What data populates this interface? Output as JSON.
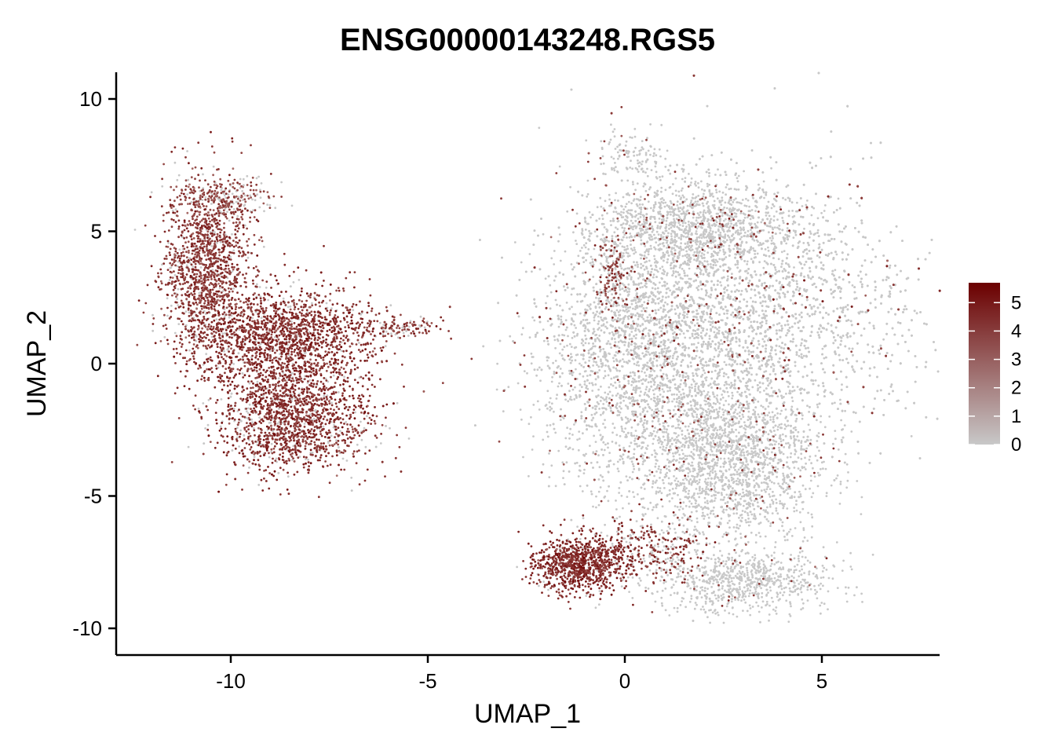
{
  "chart_data": {
    "type": "scatter",
    "title": "ENSG00000143248.RGS5",
    "xlabel": "UMAP_1",
    "ylabel": "UMAP_2",
    "xlim": [
      -13,
      8
    ],
    "ylim": [
      -11.2,
      11
    ],
    "x_ticks": [
      -10,
      -5,
      0,
      5
    ],
    "x_tick_labels": [
      "-10",
      "-5",
      "0",
      "5"
    ],
    "y_ticks": [
      -10,
      -5,
      0,
      5,
      10
    ],
    "y_tick_labels": [
      "-10",
      "-5",
      "0",
      "5",
      "10"
    ],
    "grid": false,
    "legend": {
      "placement": "right",
      "type": "colorbar",
      "range": [
        0,
        5.7
      ],
      "ticks": [
        0,
        1,
        2,
        3,
        4,
        5
      ],
      "tick_labels": [
        "0",
        "1",
        "2",
        "3",
        "4",
        "5"
      ],
      "color_low": "#c8c8c8",
      "color_high": "#6b0000"
    },
    "clusters": [
      {
        "name_hint": "left-cluster-upper-arm",
        "cx": -10.6,
        "cy": 3.6,
        "sx": 0.55,
        "sy": 1.6,
        "n": 1400,
        "expr_mean": 3.4,
        "expr_frac": 0.9
      },
      {
        "name_hint": "left-cluster-middle",
        "cx": -8.6,
        "cy": 1.0,
        "sx": 1.1,
        "sy": 0.9,
        "n": 1800,
        "expr_mean": 3.8,
        "expr_frac": 0.92
      },
      {
        "name_hint": "left-cluster-lower",
        "cx": -8.4,
        "cy": -2.0,
        "sx": 1.0,
        "sy": 1.0,
        "n": 1800,
        "expr_mean": 3.7,
        "expr_frac": 0.85
      },
      {
        "name_hint": "left-cluster-tail",
        "cx": -5.8,
        "cy": 1.35,
        "sx": 0.6,
        "sy": 0.18,
        "n": 120,
        "expr_mean": 3.3,
        "expr_frac": 0.8
      },
      {
        "name_hint": "left-cluster-top",
        "cx": -10.2,
        "cy": 6.3,
        "sx": 0.6,
        "sy": 0.4,
        "n": 250,
        "expr_mean": 2.6,
        "expr_frac": 0.6
      },
      {
        "name_hint": "right-cluster-main",
        "cx": 3.0,
        "cy": 1.8,
        "sx": 2.2,
        "sy": 2.4,
        "n": 7000,
        "expr_mean": 3.0,
        "expr_frac": 0.06
      },
      {
        "name_hint": "right-cluster-west",
        "cx": 0.4,
        "cy": 0.0,
        "sx": 1.3,
        "sy": 2.5,
        "n": 2500,
        "expr_mean": 3.0,
        "expr_frac": 0.07
      },
      {
        "name_hint": "right-cluster-upper",
        "cx": 1.8,
        "cy": 5.2,
        "sx": 1.3,
        "sy": 0.8,
        "n": 1200,
        "expr_mean": 3.0,
        "expr_frac": 0.05
      },
      {
        "name_hint": "right-cluster-lower",
        "cx": 2.8,
        "cy": -3.8,
        "sx": 1.1,
        "sy": 1.5,
        "n": 1800,
        "expr_mean": 3.0,
        "expr_frac": 0.04
      },
      {
        "name_hint": "right-cluster-bottom",
        "cx": 3.0,
        "cy": -8.2,
        "sx": 1.1,
        "sy": 0.6,
        "n": 800,
        "expr_mean": 3.0,
        "expr_frac": 0.02
      },
      {
        "name_hint": "right-cluster-spike",
        "cx": 0.2,
        "cy": 7.8,
        "sx": 0.5,
        "sy": 0.5,
        "n": 120,
        "expr_mean": 3.0,
        "expr_frac": 0.05
      },
      {
        "name_hint": "right-cluster-edge-band",
        "cx": -0.3,
        "cy": 3.3,
        "sx": 0.2,
        "sy": 0.8,
        "n": 150,
        "expr_mean": 3.2,
        "expr_frac": 0.6
      },
      {
        "name_hint": "bottom-left-blob",
        "cx": -1.2,
        "cy": -7.6,
        "sx": 0.55,
        "sy": 0.5,
        "n": 900,
        "expr_mean": 3.9,
        "expr_frac": 0.95
      },
      {
        "name_hint": "bottom-left-blob-bridge",
        "cx": 0.6,
        "cy": -7.0,
        "sx": 0.8,
        "sy": 0.6,
        "n": 350,
        "expr_mean": 3.5,
        "expr_frac": 0.7
      }
    ]
  }
}
